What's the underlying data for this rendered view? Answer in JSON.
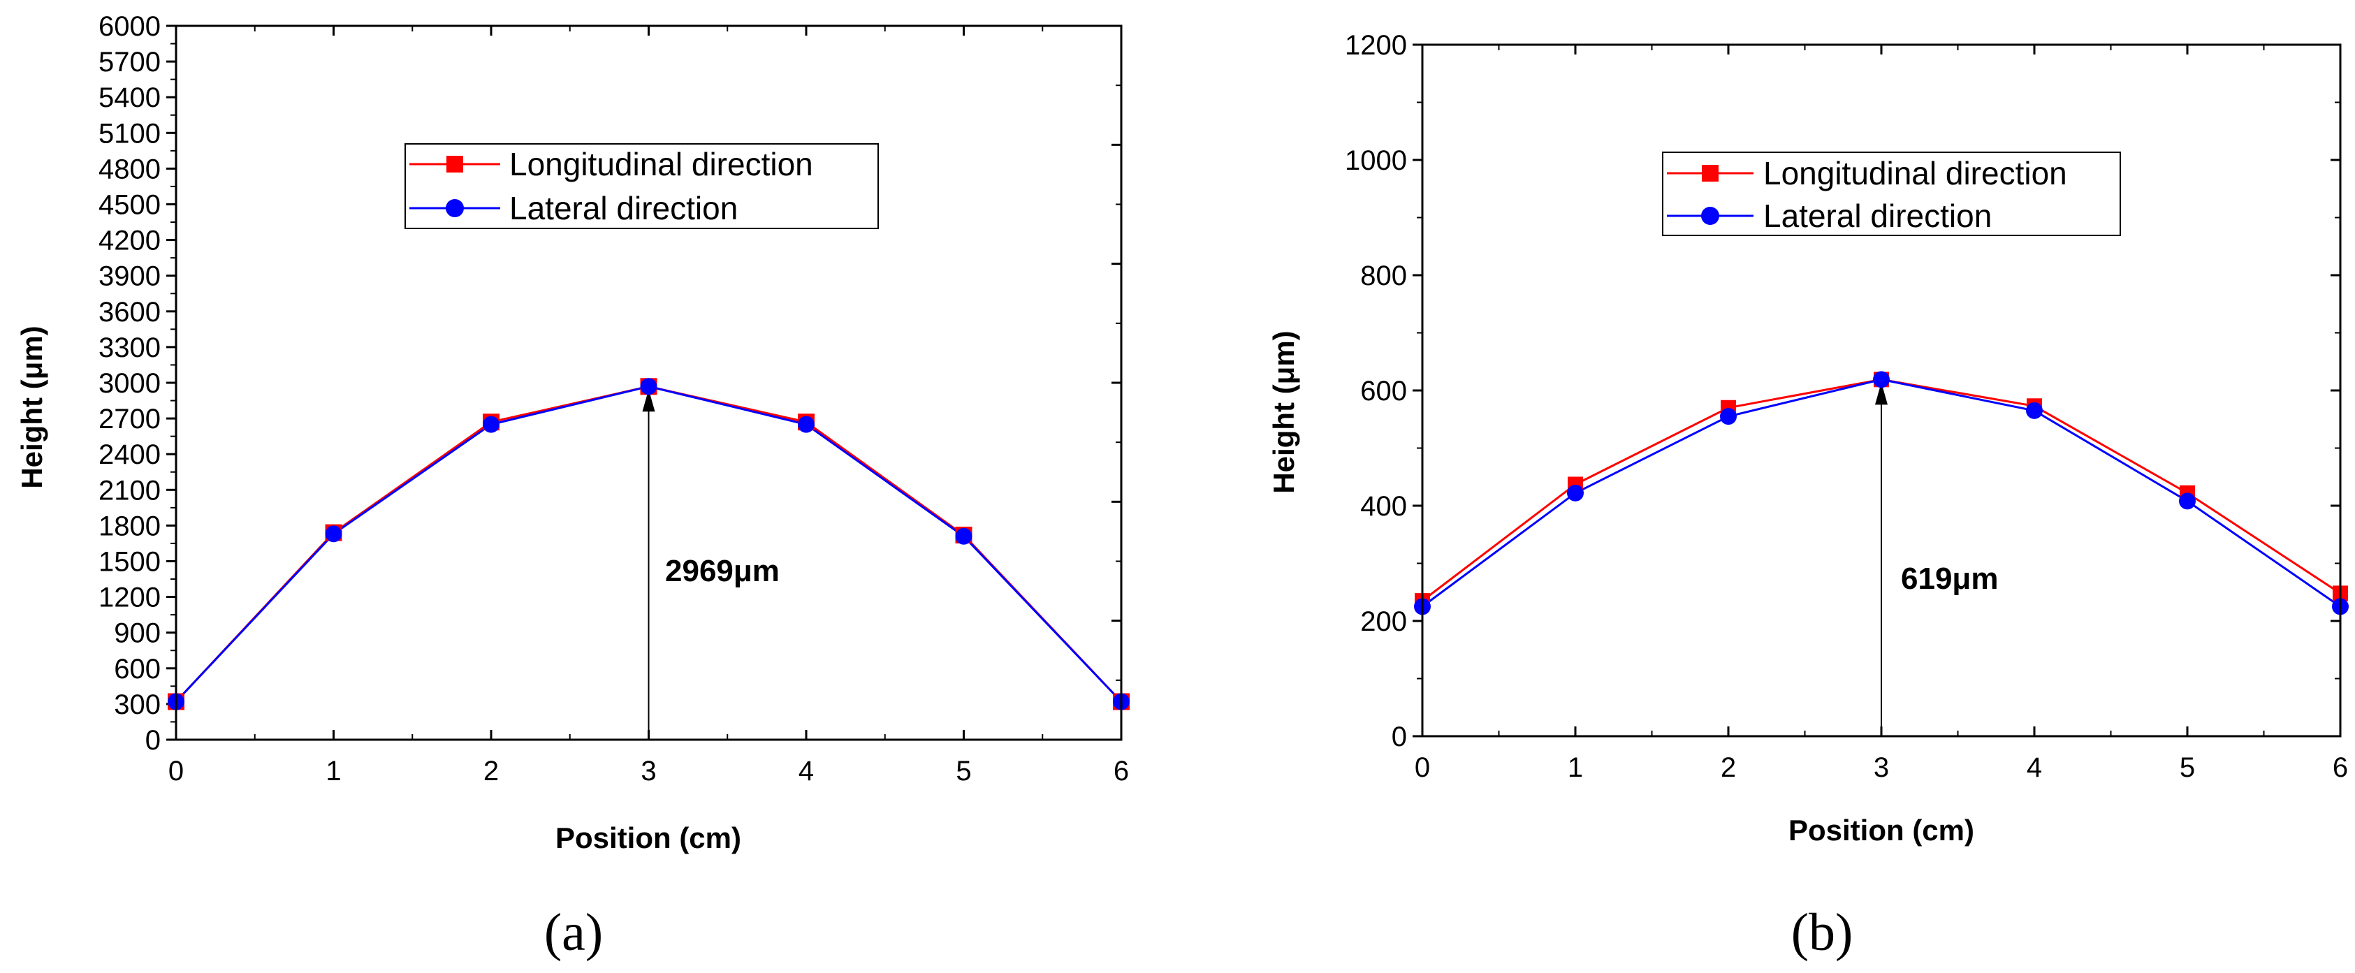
{
  "chart_data": [
    {
      "type": "line",
      "panel_label": "(a)",
      "title": "",
      "xlabel": "Position (cm)",
      "ylabel": "Height (μm)",
      "xlim": [
        0,
        6
      ],
      "ylim": [
        0,
        6000
      ],
      "x": [
        0,
        1,
        2,
        3,
        4,
        5,
        6
      ],
      "xticks": [
        "0",
        "1",
        "2",
        "3",
        "4",
        "5",
        "6"
      ],
      "yticks": [
        "0",
        "300",
        "600",
        "900",
        "1200",
        "1500",
        "1800",
        "2100",
        "2400",
        "2700",
        "3000",
        "3300",
        "3600",
        "3900",
        "4200",
        "4500",
        "4800",
        "5100",
        "5400",
        "5700",
        "6000"
      ],
      "ytick_values": [
        0,
        300,
        600,
        900,
        1200,
        1500,
        1800,
        2100,
        2400,
        2700,
        3000,
        3300,
        3600,
        3900,
        4200,
        4500,
        4800,
        5100,
        5400,
        5700,
        6000
      ],
      "series": [
        {
          "name": "Longitudinal direction",
          "color": "#ff0000",
          "marker": "square",
          "values": [
            320,
            1740,
            2670,
            2969,
            2670,
            1720,
            320
          ]
        },
        {
          "name": "Lateral direction",
          "color": "#0000ff",
          "marker": "circle",
          "values": [
            320,
            1730,
            2650,
            2969,
            2650,
            1710,
            320
          ]
        }
      ],
      "annotation": {
        "text": "2969μm",
        "x": 3,
        "y": 2969
      },
      "legend": "top-center",
      "grid": false
    },
    {
      "type": "line",
      "panel_label": "(b)",
      "title": "",
      "xlabel": "Position (cm)",
      "ylabel": "Height (μm)",
      "xlim": [
        0,
        6
      ],
      "ylim": [
        0,
        1200
      ],
      "x": [
        0,
        1,
        2,
        3,
        4,
        5,
        6
      ],
      "xticks": [
        "0",
        "1",
        "2",
        "3",
        "4",
        "5",
        "6"
      ],
      "yticks": [
        "0",
        "200",
        "400",
        "600",
        "800",
        "1000",
        "1200"
      ],
      "ytick_values": [
        0,
        200,
        400,
        600,
        800,
        1000,
        1200
      ],
      "series": [
        {
          "name": "Longitudinal direction",
          "color": "#ff0000",
          "marker": "square",
          "values": [
            235,
            437,
            570,
            619,
            573,
            422,
            248
          ]
        },
        {
          "name": "Lateral direction",
          "color": "#0000ff",
          "marker": "circle",
          "values": [
            225,
            422,
            555,
            619,
            565,
            408,
            225
          ]
        }
      ],
      "annotation": {
        "text": "619μm",
        "x": 3,
        "y": 619
      },
      "legend": "top-center",
      "grid": false
    }
  ]
}
